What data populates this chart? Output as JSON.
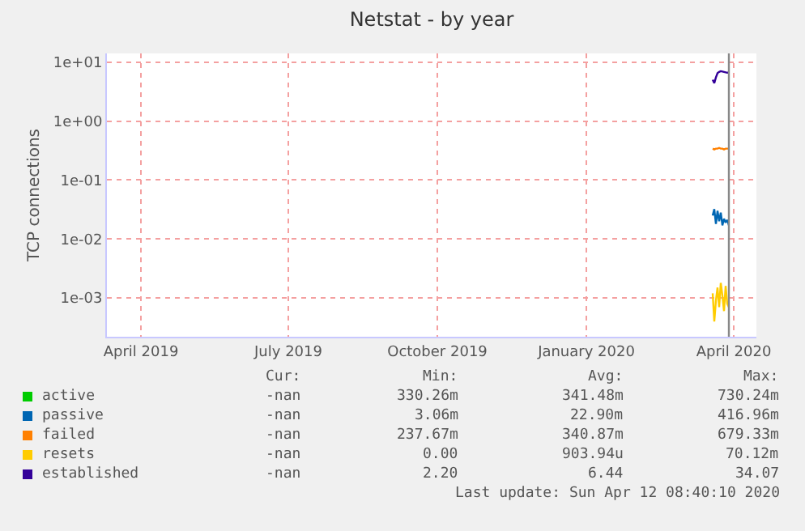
{
  "chart_data": {
    "type": "line",
    "title": "Netstat - by year",
    "ylabel": "TCP connections",
    "log": true,
    "grid": true,
    "legend": "bottom left",
    "marker": "none",
    "line_style": "solid",
    "x": [
      "2020-04-02",
      "2020-04-03",
      "2020-04-04",
      "2020-04-05",
      "2020-04-06",
      "2020-04-07",
      "2020-04-08",
      "2020-04-09",
      "2020-04-10",
      "2020-04-11",
      "2020-04-12"
    ],
    "series": [
      {
        "name": "active",
        "color": "#00cc00",
        "values": [
          null,
          null,
          null,
          null,
          null,
          null,
          null,
          null,
          null,
          null,
          null
        ]
      },
      {
        "name": "passive",
        "color": "#0066b3",
        "values": [
          0.025,
          0.032,
          0.018,
          0.03,
          0.02,
          0.028,
          0.017,
          0.022,
          0.019,
          0.021,
          0.017
        ]
      },
      {
        "name": "failed",
        "color": "#ff8000",
        "values": [
          0.34,
          0.33,
          0.34,
          0.34,
          0.35,
          0.34,
          0.34,
          0.33,
          0.34,
          0.34,
          0.34
        ]
      },
      {
        "name": "resets",
        "color": "#ffcc00",
        "values": [
          0.0012,
          0.0004,
          0.0009,
          0.0015,
          0.0007,
          0.0018,
          0.0011,
          0.0006,
          0.0016,
          0.0008,
          0.0007
        ]
      },
      {
        "name": "established",
        "color": "#330099",
        "values": [
          5.0,
          4.4,
          5.5,
          6.5,
          6.8,
          7.0,
          6.9,
          6.8,
          6.7,
          6.6,
          6.6
        ]
      }
    ],
    "xlim": [
      "2019-03-25",
      "2020-04-29"
    ],
    "xticks": [
      {
        "value": "2019-04-15",
        "label": "April 2019"
      },
      {
        "value": "2019-07-15",
        "label": "July 2019"
      },
      {
        "value": "2019-10-15",
        "label": "October 2019"
      },
      {
        "value": "2020-01-15",
        "label": "January 2020"
      },
      {
        "value": "2020-04-15",
        "label": "April 2020"
      }
    ],
    "ylim": [
      0.00022,
      14
    ],
    "yticks": [
      {
        "value": 0.001,
        "label": "1e-03"
      },
      {
        "value": 0.01,
        "label": "1e-02"
      },
      {
        "value": 0.1,
        "label": "1e-01"
      },
      {
        "value": 1,
        "label": "1e+00"
      },
      {
        "value": 10,
        "label": "1e+01"
      }
    ],
    "ref_lines": [
      {
        "axis": "x",
        "value": "2020-04-12",
        "color": "#888888"
      }
    ],
    "annotations": [
      "Cur:",
      "Min:",
      "Avg:",
      "Max:",
      "-nan",
      "330.26m",
      "341.48m",
      "730.24m",
      "-nan",
      "3.06m",
      "22.90m",
      "416.96m",
      "-nan",
      "237.67m",
      "340.87m",
      "679.33m",
      "-nan",
      "0.00",
      "903.94u",
      "70.12m",
      "-nan",
      "2.20",
      "6.44",
      "34.07",
      "Last update: Sun Apr 12 08:40:10 2020"
    ]
  }
}
